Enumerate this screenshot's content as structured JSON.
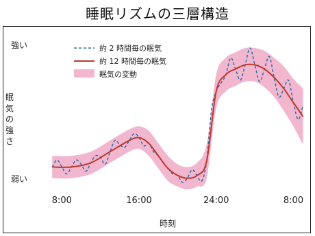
{
  "title": "睡眠リズムの三層構造",
  "colors": {
    "band": "#f2b6cf",
    "main": "#c0392b",
    "dash": "#2a6fa8"
  },
  "chart_data": {
    "type": "line",
    "title": "睡眠リズムの三層構造",
    "xlabel": "時刻",
    "ylabel_chars": [
      "眠",
      "気",
      "の",
      "強",
      "さ"
    ],
    "y_top_label": "強い",
    "y_bottom_label": "弱い",
    "x_ticks": [
      {
        "value": 8,
        "label": "8:00"
      },
      {
        "value": 16,
        "label": "16:00"
      },
      {
        "value": 24,
        "label": "24:00"
      },
      {
        "value": 32,
        "label": "8:00"
      }
    ],
    "xlim": [
      6.7,
      33.6
    ],
    "ylim": [
      0,
      100
    ],
    "series": [
      {
        "name": "約 12 時間毎の眠気",
        "style": "solid",
        "x": [
          7,
          9,
          11,
          13,
          15,
          16,
          17,
          18,
          19,
          20,
          21,
          22,
          23,
          24,
          25,
          26,
          27,
          28,
          29,
          30,
          31,
          32,
          33
        ],
        "y": [
          14,
          14,
          17,
          25,
          33,
          35,
          31,
          22,
          13,
          8,
          6,
          8,
          18,
          68,
          80,
          84,
          87,
          87,
          84,
          78,
          70,
          60,
          50
        ]
      },
      {
        "name": "約 2 時間毎の眠気",
        "style": "dashed",
        "x": [
          7,
          7.5,
          8,
          8.5,
          9,
          9.5,
          10,
          10.5,
          11,
          11.5,
          12,
          12.5,
          13,
          13.5,
          14,
          14.5,
          15,
          15.5,
          16,
          16.5,
          17,
          17.5,
          18,
          18.5,
          19,
          19.5,
          20,
          20.5,
          21,
          21.5,
          22,
          22.5,
          23,
          23.5,
          24,
          24.5,
          25,
          25.5,
          26,
          26.5,
          27,
          27.5,
          28,
          28.5,
          29,
          29.5,
          30,
          30.5,
          31,
          31.5,
          32,
          32.5,
          33
        ],
        "y": [
          14,
          19,
          14,
          9,
          14,
          19,
          16,
          11,
          17,
          22,
          21,
          16,
          25,
          33,
          30,
          28,
          33,
          38,
          35,
          29,
          31,
          25,
          22,
          17,
          13,
          9,
          8,
          3,
          6,
          12,
          8,
          4,
          18,
          54,
          68,
          74,
          80,
          92,
          84,
          76,
          87,
          99,
          87,
          75,
          84,
          93,
          78,
          64,
          70,
          76,
          60,
          48,
          58
        ]
      },
      {
        "name": "眠気の変動",
        "style": "band",
        "x": [
          7,
          9,
          11,
          13,
          15,
          16,
          17,
          18,
          19,
          20,
          21,
          22,
          23,
          24,
          25,
          26,
          27,
          28,
          29,
          30,
          31,
          32,
          33
        ],
        "upper": [
          22,
          22,
          25,
          33,
          41,
          43,
          40,
          31,
          22,
          16,
          14,
          17,
          30,
          80,
          92,
          96,
          99,
          99,
          97,
          92,
          86,
          77,
          70
        ],
        "lower": [
          6,
          6,
          9,
          17,
          25,
          27,
          22,
          13,
          4,
          0,
          -2,
          0,
          6,
          56,
          68,
          72,
          75,
          75,
          71,
          64,
          54,
          43,
          30
        ]
      }
    ],
    "legend_position": "top-left"
  }
}
